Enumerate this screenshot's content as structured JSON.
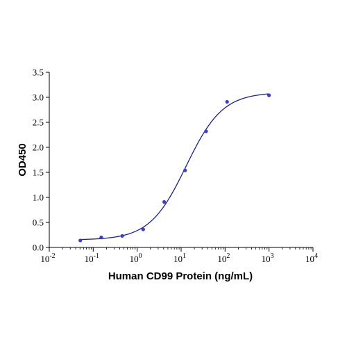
{
  "chart_data": {
    "type": "scatter",
    "title": "",
    "xlabel": "Human CD99 Protein (ng/mL)",
    "ylabel": "OD450",
    "x_scale": "log",
    "xlim": [
      0.01,
      10000
    ],
    "ylim": [
      0,
      3.5
    ],
    "grid": false,
    "legend": "none",
    "x_ticks": [
      {
        "value": 0.01,
        "base": "10",
        "exp": "-2"
      },
      {
        "value": 0.1,
        "base": "10",
        "exp": "-1"
      },
      {
        "value": 1,
        "base": "10",
        "exp": "0"
      },
      {
        "value": 10,
        "base": "10",
        "exp": "1"
      },
      {
        "value": 100,
        "base": "10",
        "exp": "2"
      },
      {
        "value": 1000,
        "base": "10",
        "exp": "3"
      },
      {
        "value": 10000,
        "base": "10",
        "exp": "4"
      }
    ],
    "y_ticks": [
      {
        "value": 0,
        "label": "0.0"
      },
      {
        "value": 0.5,
        "label": "0.5"
      },
      {
        "value": 1,
        "label": "1.0"
      },
      {
        "value": 1.5,
        "label": "1.5"
      },
      {
        "value": 2,
        "label": "2.0"
      },
      {
        "value": 2.5,
        "label": "2.5"
      },
      {
        "value": 3,
        "label": "3.0"
      },
      {
        "value": 3.5,
        "label": "3.5"
      }
    ],
    "points": {
      "x": [
        0.0508,
        0.152,
        0.457,
        1.37,
        4.12,
        12.3,
        37.0,
        111,
        1000
      ],
      "y": [
        0.14,
        0.2,
        0.23,
        0.36,
        0.91,
        1.54,
        2.32,
        2.91,
        3.04
      ]
    },
    "fit_curve": {
      "model": "4PL",
      "bottom": 0.15,
      "top": 3.1,
      "ec50": 13,
      "hill": 1.05
    },
    "colors": {
      "points": "#3a3ad6",
      "curve": "#1c1c96",
      "axis": "#000000"
    }
  }
}
